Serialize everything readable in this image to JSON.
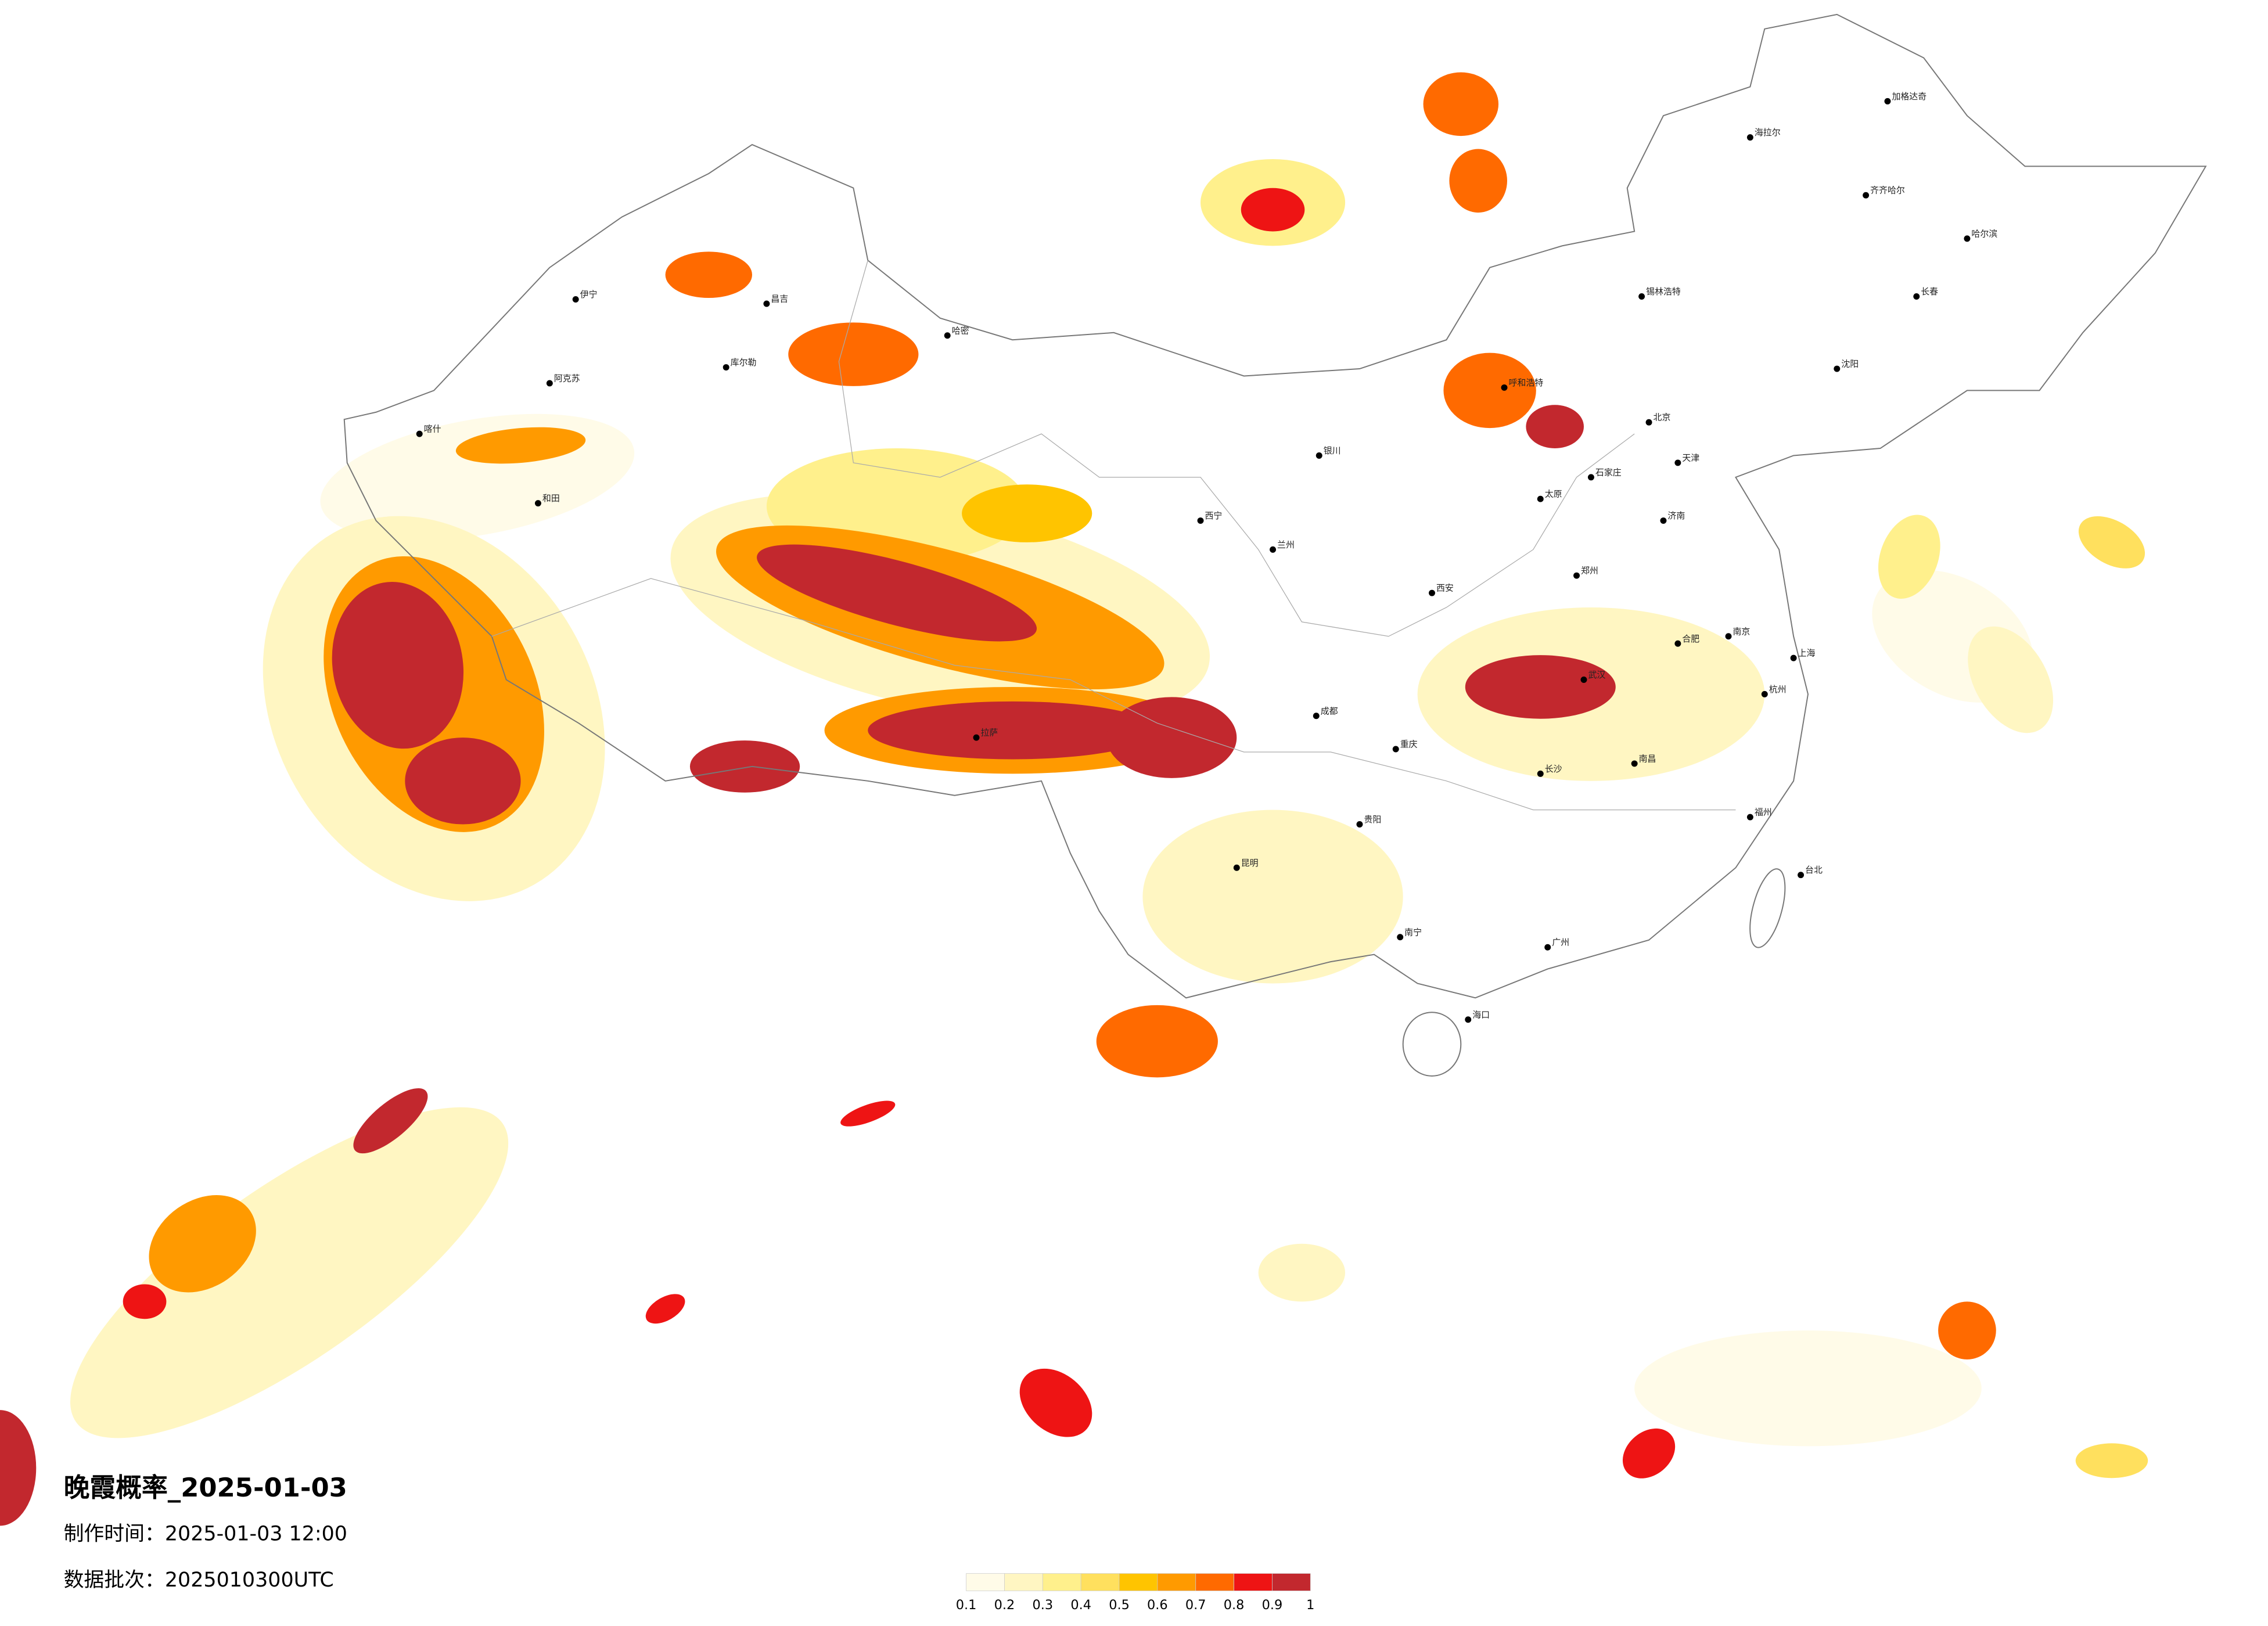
{
  "title": "晚霞概率_2025-01-03",
  "made_time": "制作时间：2025-01-03 12:00",
  "data_batch": "数据批次：2025010300UTC",
  "cities": [
    "伊宁",
    "阿克苏",
    "喀什",
    "和田",
    "库尔勒",
    "哈密",
    "昌吉",
    "拉萨",
    "西宁",
    "兰州",
    "银川",
    "呼和浩特",
    "北京",
    "天津",
    "石家庄",
    "太原",
    "济南",
    "郑州",
    "西安",
    "成都",
    "重庆",
    "贵阳",
    "昆明",
    "南宁",
    "广州",
    "长沙",
    "武汉",
    "南昌",
    "合肥",
    "南京",
    "上海",
    "杭州",
    "福州",
    "台北",
    "海口",
    "沈阳",
    "长春",
    "哈尔滨",
    "齐齐哈尔",
    "海拉尔",
    "锡林浩特",
    "加格达奇"
  ],
  "colorbar": {
    "ticks": [
      0.1,
      0.2,
      0.3,
      0.4,
      0.5,
      0.6,
      0.7,
      0.8,
      0.9,
      1
    ],
    "colors": [
      "#fffbe8",
      "#fff6c2",
      "#fff08c",
      "#ffe05e",
      "#ffc400",
      "#ff9a00",
      "#ff6a00",
      "#ee1414",
      "#c2282e"
    ]
  }
}
